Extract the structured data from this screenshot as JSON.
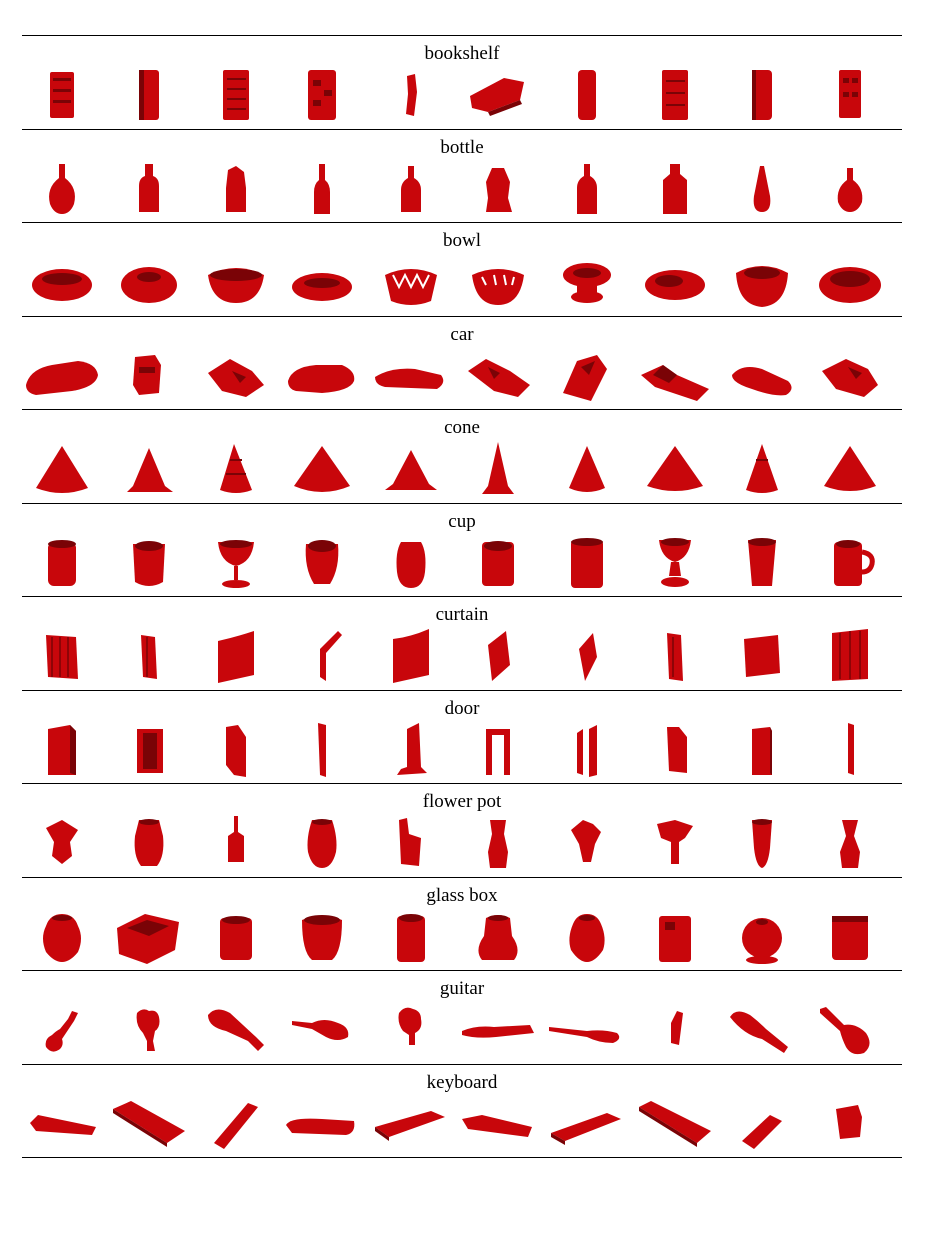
{
  "figure": {
    "object_color": "#c8060b",
    "object_shadow_color": "#7a0306",
    "rows": [
      {
        "label": "bookshelf",
        "thumbnails": [
          "bookshelf",
          "bookshelf",
          "bookshelf",
          "bookshelf",
          "bookshelf",
          "bookshelf",
          "bookshelf",
          "bookshelf",
          "bookshelf",
          "bookshelf"
        ]
      },
      {
        "label": "bottle",
        "thumbnails": [
          "bottle",
          "bottle",
          "bottle",
          "bottle",
          "bottle",
          "bottle",
          "bottle",
          "bottle",
          "bottle",
          "bottle"
        ]
      },
      {
        "label": "bowl",
        "thumbnails": [
          "bowl",
          "bowl",
          "bowl",
          "bowl",
          "bowl",
          "bowl",
          "bowl",
          "bowl",
          "bowl",
          "bowl"
        ]
      },
      {
        "label": "car",
        "thumbnails": [
          "car",
          "car",
          "car",
          "car",
          "car",
          "car",
          "car",
          "car",
          "car",
          "car"
        ]
      },
      {
        "label": "cone",
        "thumbnails": [
          "cone",
          "cone",
          "cone",
          "cone",
          "cone",
          "cone",
          "cone",
          "cone",
          "cone",
          "cone"
        ]
      },
      {
        "label": "cup",
        "thumbnails": [
          "cup",
          "cup",
          "cup",
          "cup",
          "cup",
          "cup",
          "cup",
          "cup",
          "cup",
          "cup"
        ]
      },
      {
        "label": "curtain",
        "thumbnails": [
          "curtain",
          "curtain",
          "curtain",
          "curtain",
          "curtain",
          "curtain",
          "curtain",
          "curtain",
          "curtain",
          "curtain"
        ]
      },
      {
        "label": "door",
        "thumbnails": [
          "door",
          "door",
          "door",
          "door",
          "door",
          "door",
          "door",
          "door",
          "door",
          "door"
        ]
      },
      {
        "label": "flower pot",
        "thumbnails": [
          "flower pot",
          "flower pot",
          "flower pot",
          "flower pot",
          "flower pot",
          "flower pot",
          "flower pot",
          "flower pot",
          "flower pot",
          "flower pot"
        ]
      },
      {
        "label": "glass box",
        "thumbnails": [
          "glass box",
          "glass box",
          "glass box",
          "glass box",
          "glass box",
          "glass box",
          "glass box",
          "glass box",
          "glass box",
          "glass box"
        ]
      },
      {
        "label": "guitar",
        "thumbnails": [
          "guitar",
          "guitar",
          "guitar",
          "guitar",
          "guitar",
          "guitar",
          "guitar",
          "guitar",
          "guitar",
          "guitar"
        ]
      },
      {
        "label": "keyboard",
        "thumbnails": [
          "keyboard",
          "keyboard",
          "keyboard",
          "keyboard",
          "keyboard",
          "keyboard",
          "keyboard",
          "keyboard",
          "keyboard",
          "keyboard"
        ]
      }
    ]
  }
}
